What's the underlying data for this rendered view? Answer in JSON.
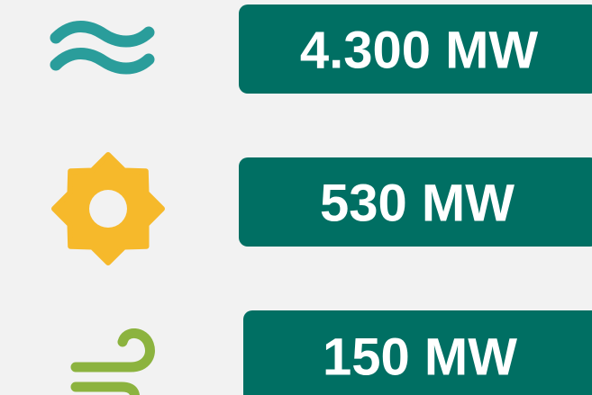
{
  "items": [
    {
      "label": "4.300 MW"
    },
    {
      "label": "530 MW"
    },
    {
      "label": "150 MW"
    }
  ]
}
